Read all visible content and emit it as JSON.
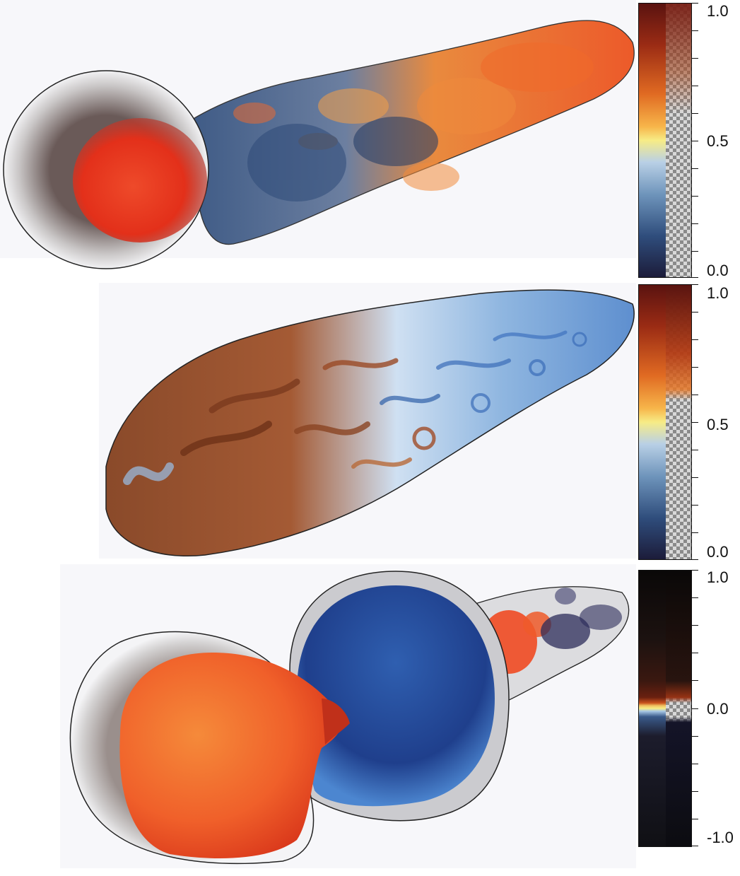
{
  "panels": [
    {
      "colorbar": {
        "top_label": "1.0",
        "mid_label": "0.5",
        "bottom_label": "0.0"
      }
    },
    {
      "colorbar": {
        "top_label": "1.0",
        "mid_label": "0.5",
        "bottom_label": "0.0"
      }
    },
    {
      "colorbar": {
        "top_label": "1.0",
        "mid_label": "0.0",
        "bottom_label": "-1.0"
      }
    }
  ],
  "colors": {
    "background": "#ffffff",
    "red_core": "#e8331c",
    "orange": "#f07a30",
    "blue_deep": "#1f3f8c",
    "blue_light": "#8fb6e0",
    "brown": "#8a4a2a",
    "outline": "#222222"
  }
}
